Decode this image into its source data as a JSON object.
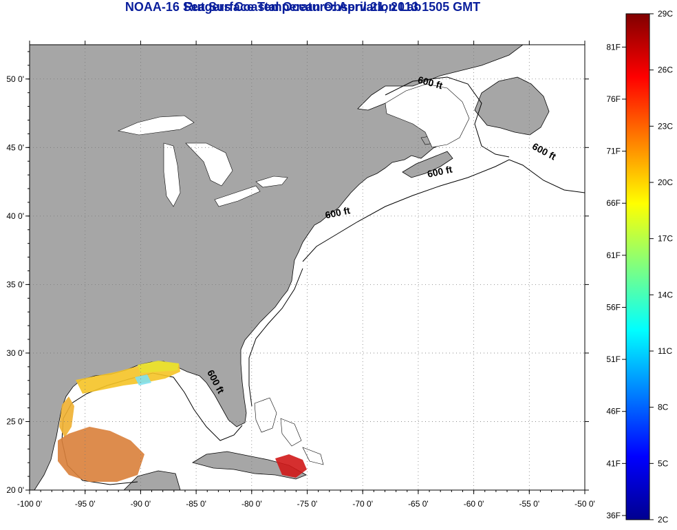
{
  "title": "NOAA-16 Sea Surface Temperature:  April 21, 2013 1505 GMT",
  "subtitle": "Rutgers Coastal Ocean Observation Lab",
  "colors": {
    "land": "#a6a6a6",
    "ocean": "#ffffff",
    "title": "#0a1f9c",
    "coastline": "#000000"
  },
  "map": {
    "lon_range": [
      -100,
      -50
    ],
    "lat_range": [
      20,
      52.5
    ],
    "lon_ticks": [
      {
        "value": -100,
        "label": "-100 0'"
      },
      {
        "value": -95,
        "label": "-95 0'"
      },
      {
        "value": -90,
        "label": "-90 0'"
      },
      {
        "value": -85,
        "label": "-85 0'"
      },
      {
        "value": -80,
        "label": "-80 0'"
      },
      {
        "value": -75,
        "label": "-75 0'"
      },
      {
        "value": -70,
        "label": "-70 0'"
      },
      {
        "value": -65,
        "label": "-65 0'"
      },
      {
        "value": -60,
        "label": "-60 0'"
      },
      {
        "value": -55,
        "label": "-55 0'"
      },
      {
        "value": -50,
        "label": "-50 0'"
      }
    ],
    "lat_ticks": [
      {
        "value": 50,
        "label": "50 0'"
      },
      {
        "value": 45,
        "label": "45 0'"
      },
      {
        "value": 40,
        "label": "40 0'"
      },
      {
        "value": 35,
        "label": "35 0'"
      },
      {
        "value": 30,
        "label": "30 0'"
      },
      {
        "value": 25,
        "label": "25 0'"
      },
      {
        "value": 20,
        "label": "20 0'"
      }
    ],
    "grid": "dotted",
    "contour_labels": [
      {
        "text": "600 ft",
        "lon": -64.0,
        "lat": 49.5,
        "angle": 15
      },
      {
        "text": "600 ft",
        "lon": -53.8,
        "lat": 44.5,
        "angle": 28
      },
      {
        "text": "600 ft",
        "lon": -63.0,
        "lat": 43.0,
        "angle": -12
      },
      {
        "text": "600 ft",
        "lon": -72.2,
        "lat": 40.0,
        "angle": -12
      },
      {
        "text": "600 ft",
        "lon": -83.5,
        "lat": 27.8,
        "angle": 62
      }
    ]
  },
  "colorbar": {
    "min_c": 2,
    "max_c": 29,
    "celsius_ticks": [
      "29C",
      "26C",
      "23C",
      "20C",
      "17C",
      "14C",
      "11C",
      "8C",
      "5C",
      "2C"
    ],
    "fahrenheit_ticks": [
      "81F",
      "76F",
      "71F",
      "66F",
      "61F",
      "56F",
      "51F",
      "46F",
      "41F",
      "36F"
    ]
  }
}
